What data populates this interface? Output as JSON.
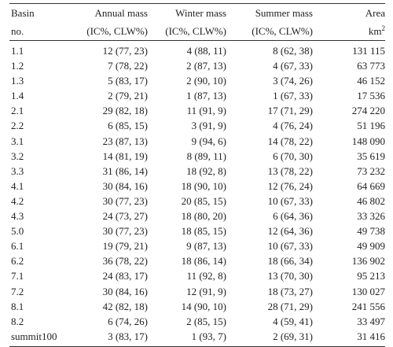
{
  "headers": {
    "basin_line1": "Basin",
    "basin_line2": "no.",
    "annual_line1": "Annual mass",
    "annual_line2": "(IC%, CLW%)",
    "winter_line1": "Winter mass",
    "winter_line2": "(IC%, CLW%)",
    "summer_line1": "Summer mass",
    "summer_line2": "(IC%, CLW%)",
    "area_line1": "Area",
    "area_line2": "km",
    "area_sup": "2"
  },
  "rows": [
    {
      "basin": "1.1",
      "annual": "12 (77, 23)",
      "winter": "4 (88, 11)",
      "summer": "8 (62, 38)",
      "area": "131 115"
    },
    {
      "basin": "1.2",
      "annual": "7 (78, 22)",
      "winter": "2 (87, 13)",
      "summer": "4 (67, 33)",
      "area": "63 773"
    },
    {
      "basin": "1.3",
      "annual": "5 (83, 17)",
      "winter": "2 (90, 10)",
      "summer": "3 (74, 26)",
      "area": "46 152"
    },
    {
      "basin": "1.4",
      "annual": "2 (79, 21)",
      "winter": "1 (87, 13)",
      "summer": "1 (67, 33)",
      "area": "17 536"
    },
    {
      "basin": "2.1",
      "annual": "29 (82, 18)",
      "winter": "11 (91, 9)",
      "summer": "17 (71, 29)",
      "area": "274 220"
    },
    {
      "basin": "2.2",
      "annual": "6 (85, 15)",
      "winter": "3 (91, 9)",
      "summer": "4 (76, 24)",
      "area": "51 196"
    },
    {
      "basin": "3.1",
      "annual": "23 (87, 13)",
      "winter": "9 (94, 6)",
      "summer": "14 (78, 22)",
      "area": "148 090"
    },
    {
      "basin": "3.2",
      "annual": "14 (81, 19)",
      "winter": "8 (89, 11)",
      "summer": "6 (70, 30)",
      "area": "35 619"
    },
    {
      "basin": "3.3",
      "annual": "31 (86, 14)",
      "winter": "18 (92, 8)",
      "summer": "13 (78, 22)",
      "area": "73 232"
    },
    {
      "basin": "4.1",
      "annual": "30 (84, 16)",
      "winter": "18 (90, 10)",
      "summer": "12 (76, 24)",
      "area": "64 669"
    },
    {
      "basin": "4.2",
      "annual": "30 (77, 23)",
      "winter": "20 (85, 15)",
      "summer": "10 (67, 33)",
      "area": "46 802"
    },
    {
      "basin": "4.3",
      "annual": "24 (73, 27)",
      "winter": "18 (80, 20)",
      "summer": "6 (64, 36)",
      "area": "33 326"
    },
    {
      "basin": "5.0",
      "annual": "30 (77, 23)",
      "winter": "18 (85, 15)",
      "summer": "12 (64, 36)",
      "area": "49 738"
    },
    {
      "basin": "6.1",
      "annual": "19 (79, 21)",
      "winter": "9 (87, 13)",
      "summer": "10 (67, 33)",
      "area": "49 909"
    },
    {
      "basin": "6.2",
      "annual": "36 (78, 22)",
      "winter": "18 (86, 14)",
      "summer": "18 (66, 34)",
      "area": "136 902"
    },
    {
      "basin": "7.1",
      "annual": "24 (83, 17)",
      "winter": "11 (92, 8)",
      "summer": "13 (70, 30)",
      "area": "95 213"
    },
    {
      "basin": "7.2",
      "annual": "30 (84, 16)",
      "winter": "12 (91, 9)",
      "summer": "18 (73, 27)",
      "area": "130 027"
    },
    {
      "basin": "8.1",
      "annual": "42 (82, 18)",
      "winter": "14 (90, 10)",
      "summer": "28 (71, 29)",
      "area": "241 556"
    },
    {
      "basin": "8.2",
      "annual": "6 (74, 26)",
      "winter": "2 (85, 15)",
      "summer": "4 (59, 41)",
      "area": "33 497"
    },
    {
      "basin": "summit100",
      "annual": "3 (83, 17)",
      "winter": "1 (93, 7)",
      "summer": "2 (69, 31)",
      "area": "31 416"
    }
  ]
}
